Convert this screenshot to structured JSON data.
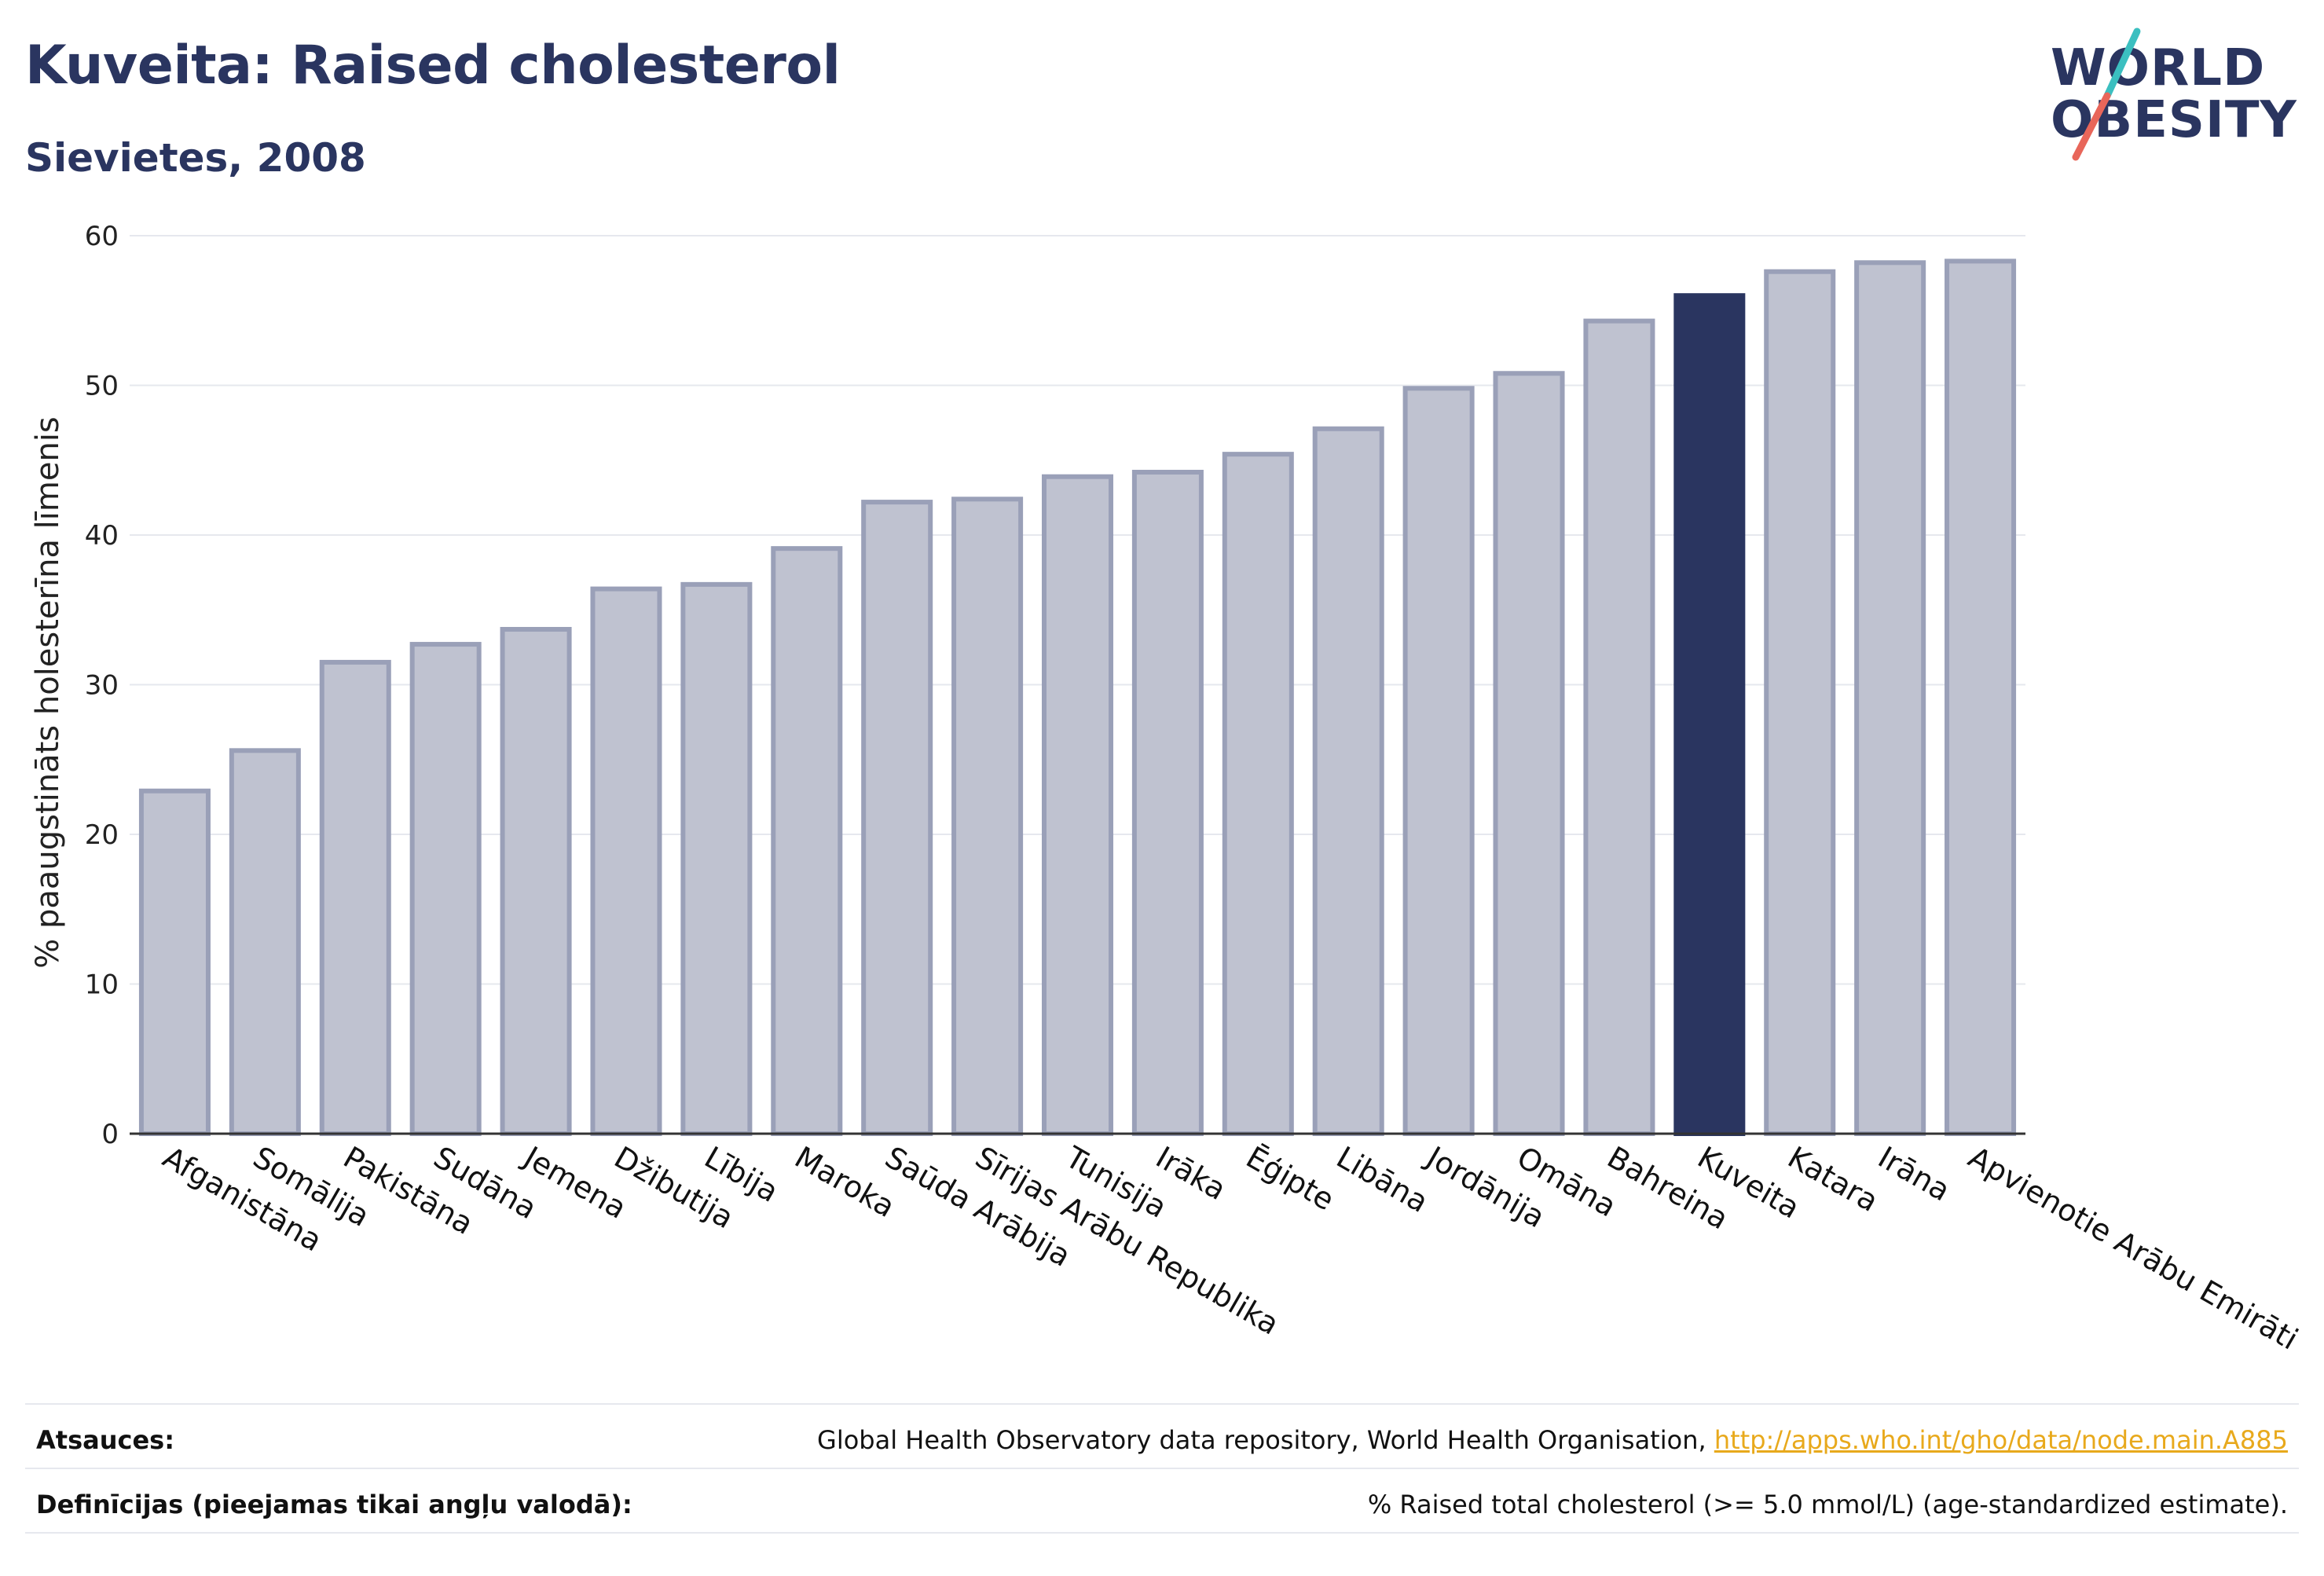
{
  "header": {
    "title": "Kuveita: Raised cholesterol",
    "subtitle": "Sievietes, 2008"
  },
  "logo": {
    "line1": "WORLD",
    "line2": "OBESITY",
    "accent_colors": [
      "#3bbfc0",
      "#e8665a"
    ]
  },
  "colors": {
    "bar": "#bfc2d0",
    "bar_border": "#9aa0b8",
    "highlight": "#2a3560",
    "grid": "#e6e8ee",
    "axis": "#333333"
  },
  "chart_data": {
    "type": "bar",
    "ylabel": "% paaugstināts holesterīna līmenis",
    "ylim": [
      0,
      60
    ],
    "yticks": [
      0,
      10,
      20,
      30,
      40,
      50,
      60
    ],
    "grid": true,
    "highlight": "Kuveita",
    "categories": [
      "Afganistāna",
      "Somālija",
      "Pakistāna",
      "Sudāna",
      "Jemena",
      "Džibutija",
      "Lībija",
      "Maroka",
      "Saūda Arābija",
      "Sīrijas Arābu Republika",
      "Tunisija",
      "Irāka",
      "Ēģipte",
      "Libāna",
      "Jordānija",
      "Omāna",
      "Bahreina",
      "Kuveita",
      "Katara",
      "Irāna",
      "Apvienotie Arābu Emirāti"
    ],
    "values": [
      22.9,
      25.6,
      31.5,
      32.7,
      33.7,
      36.4,
      36.7,
      39.1,
      42.2,
      42.4,
      43.9,
      44.2,
      45.4,
      47.1,
      49.8,
      50.8,
      54.3,
      56.0,
      57.6,
      58.2,
      58.3
    ]
  },
  "footer": {
    "sources_label": "Atsauces:",
    "sources_text": "Global Health Observatory data repository, World Health Organisation, ",
    "sources_link": "http://apps.who.int/gho/data/node.main.A885",
    "definitions_label": "Definīcijas (pieejamas tikai angļu valodā):",
    "definitions_text": "% Raised total cholesterol (>= 5.0 mmol/L) (age-standardized estimate)."
  }
}
